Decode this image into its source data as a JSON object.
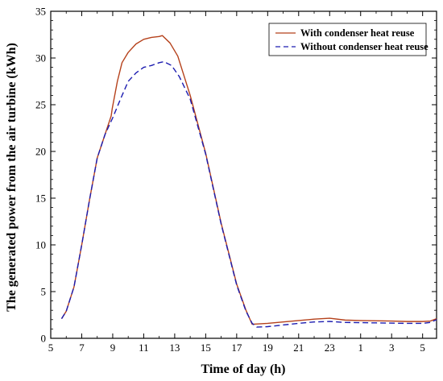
{
  "chart_data": {
    "type": "line",
    "title": "",
    "xlabel": "Time of day (h)",
    "ylabel": "The generated power from the air turbine (kWh)",
    "x_ticks": [
      "5",
      "7",
      "9",
      "11",
      "13",
      "15",
      "17",
      "19",
      "21",
      "23",
      "1",
      "3",
      "5"
    ],
    "y_ticks": [
      "0",
      "5",
      "10",
      "15",
      "20",
      "25",
      "30",
      "35"
    ],
    "xlim": [
      5,
      29.9
    ],
    "ylim": [
      0,
      35
    ],
    "grid": false,
    "legend_position": "top-right",
    "series": [
      {
        "name": "With condenser heat reuse",
        "color": "#b5411b",
        "style": "solid",
        "points": [
          [
            5.7,
            2.1
          ],
          [
            6.0,
            2.9
          ],
          [
            6.5,
            5.5
          ],
          [
            7.0,
            10.0
          ],
          [
            7.5,
            14.8
          ],
          [
            8.0,
            19.3
          ],
          [
            8.5,
            21.8
          ],
          [
            8.9,
            23.8
          ],
          [
            8.97,
            24.6
          ],
          [
            9.3,
            27.5
          ],
          [
            9.6,
            29.5
          ],
          [
            10.0,
            30.6
          ],
          [
            10.5,
            31.5
          ],
          [
            11.0,
            32.0
          ],
          [
            11.5,
            32.2
          ],
          [
            12.0,
            32.3
          ],
          [
            12.2,
            32.4
          ],
          [
            12.7,
            31.6
          ],
          [
            13.2,
            30.2
          ],
          [
            14.0,
            26.0
          ],
          [
            15.0,
            19.8
          ],
          [
            16.0,
            12.3
          ],
          [
            17.0,
            5.8
          ],
          [
            17.6,
            3.0
          ],
          [
            18.0,
            1.5
          ],
          [
            19.0,
            1.6
          ],
          [
            21.0,
            1.9
          ],
          [
            22.0,
            2.05
          ],
          [
            23.0,
            2.15
          ],
          [
            24.0,
            1.95
          ],
          [
            25.0,
            1.9
          ],
          [
            27.0,
            1.85
          ],
          [
            28.0,
            1.8
          ],
          [
            29.0,
            1.8
          ],
          [
            29.5,
            1.85
          ],
          [
            29.9,
            2.1
          ]
        ]
      },
      {
        "name": "Without condenser heat reuse",
        "color": "#1c1cb0",
        "style": "dashed",
        "points": [
          [
            5.7,
            2.1
          ],
          [
            6.0,
            2.9
          ],
          [
            6.5,
            5.5
          ],
          [
            7.0,
            10.0
          ],
          [
            7.5,
            14.8
          ],
          [
            8.0,
            19.3
          ],
          [
            8.5,
            21.8
          ],
          [
            9.0,
            23.6
          ],
          [
            9.5,
            25.6
          ],
          [
            10.0,
            27.5
          ],
          [
            10.5,
            28.4
          ],
          [
            11.0,
            29.0
          ],
          [
            11.5,
            29.2
          ],
          [
            12.0,
            29.5
          ],
          [
            12.3,
            29.6
          ],
          [
            12.8,
            29.2
          ],
          [
            13.3,
            28.0
          ],
          [
            14.0,
            25.6
          ],
          [
            15.0,
            19.7
          ],
          [
            16.0,
            12.2
          ],
          [
            17.0,
            5.7
          ],
          [
            17.6,
            2.9
          ],
          [
            18.0,
            1.6
          ],
          [
            18.3,
            1.2
          ],
          [
            19.0,
            1.25
          ],
          [
            21.0,
            1.6
          ],
          [
            22.0,
            1.75
          ],
          [
            23.0,
            1.8
          ],
          [
            24.0,
            1.7
          ],
          [
            26.0,
            1.65
          ],
          [
            28.0,
            1.6
          ],
          [
            29.0,
            1.6
          ],
          [
            29.5,
            1.7
          ],
          [
            29.9,
            2.0
          ]
        ]
      }
    ]
  }
}
